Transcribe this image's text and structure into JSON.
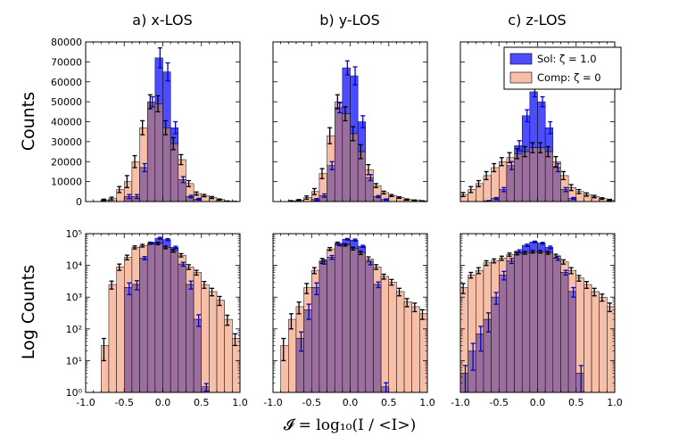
{
  "colors": {
    "sol": "#4d4dff",
    "comp": "#f7bfa8",
    "overlap": "#9b6f9d",
    "sol_err": "#0000cc",
    "comp_err": "#000000"
  },
  "row_labels": [
    "Counts",
    "Log Counts"
  ],
  "xlabel": "𝓘 = log₁₀(I / <I>)",
  "legend": {
    "sol": "Sol: ζ = 1.0",
    "comp": "Comp: ζ = 0",
    "placement": "top-right of c) z-LOS linear panel"
  },
  "chart_data": [
    {
      "type": "bar",
      "title": "a) x-LOS",
      "scale": "linear",
      "xlim": [
        -1.0,
        1.0
      ],
      "ylim": [
        0,
        80000
      ],
      "bin_width": 0.1,
      "x": [
        -0.75,
        -0.65,
        -0.55,
        -0.45,
        -0.35,
        -0.25,
        -0.15,
        -0.05,
        0.05,
        0.15,
        0.25,
        0.35,
        0.45,
        0.55,
        0.65,
        0.75,
        0.85,
        0.95
      ],
      "xticks": [
        "-1.0",
        "-0.5",
        "0.0",
        "0.5",
        "1.0"
      ],
      "yticks": [
        "0",
        "10000",
        "20000",
        "30000",
        "40000",
        "50000",
        "60000",
        "70000",
        "80000"
      ],
      "series": [
        {
          "name": "Sol: ζ = 1.0",
          "values": [
            0,
            0,
            0,
            2500,
            2500,
            17000,
            50000,
            72000,
            65000,
            37000,
            11000,
            2500,
            1200,
            0,
            0,
            0,
            0,
            0
          ],
          "err": [
            0,
            0,
            0,
            1000,
            1000,
            2000,
            2500,
            5000,
            4500,
            3000,
            1500,
            600,
            400,
            0,
            0,
            0,
            0,
            0
          ]
        },
        {
          "name": "Comp: ζ = 0",
          "values": [
            800,
            1500,
            6000,
            10000,
            20000,
            37000,
            50000,
            49000,
            37000,
            29000,
            21000,
            9000,
            4000,
            3000,
            2000,
            1000,
            200,
            50
          ],
          "err": [
            400,
            700,
            1500,
            3000,
            3000,
            3500,
            3500,
            4000,
            3500,
            3000,
            2500,
            1500,
            800,
            600,
            500,
            300,
            100,
            30
          ]
        }
      ]
    },
    {
      "type": "bar",
      "title": "b) y-LOS",
      "scale": "linear",
      "xlim": [
        -1.0,
        1.0
      ],
      "ylim": [
        0,
        80000
      ],
      "bin_width": 0.1,
      "x": [
        -0.75,
        -0.65,
        -0.55,
        -0.45,
        -0.35,
        -0.25,
        -0.15,
        -0.05,
        0.05,
        0.15,
        0.25,
        0.35,
        0.45,
        0.55,
        0.65,
        0.75,
        0.85,
        0.95
      ],
      "xticks": [
        "-1.0",
        "-0.5",
        "0.0",
        "0.5",
        "1.0"
      ],
      "yticks": [],
      "series": [
        {
          "name": "Sol: ζ = 1.0",
          "values": [
            0,
            0,
            0,
            1000,
            3000,
            18000,
            47000,
            67000,
            63000,
            40000,
            12000,
            2500,
            1000,
            0,
            0,
            0,
            0,
            0
          ],
          "err": [
            0,
            0,
            0,
            500,
            800,
            2000,
            2500,
            3500,
            4500,
            3000,
            1500,
            500,
            300,
            0,
            0,
            0,
            0,
            0
          ]
        },
        {
          "name": "Comp: ζ = 0",
          "values": [
            300,
            700,
            2000,
            5000,
            14000,
            33000,
            50000,
            44000,
            34000,
            25000,
            16000,
            8000,
            4500,
            3000,
            2000,
            1000,
            600,
            300
          ],
          "err": [
            150,
            300,
            800,
            1500,
            2500,
            4000,
            3500,
            3500,
            3500,
            3500,
            2500,
            1000,
            700,
            500,
            400,
            300,
            200,
            100
          ]
        }
      ]
    },
    {
      "type": "bar",
      "title": "c) z-LOS",
      "scale": "linear",
      "xlim": [
        -1.0,
        1.0
      ],
      "ylim": [
        0,
        80000
      ],
      "bin_width": 0.1,
      "x": [
        -0.95,
        -0.85,
        -0.75,
        -0.65,
        -0.55,
        -0.45,
        -0.35,
        -0.25,
        -0.15,
        -0.05,
        0.05,
        0.15,
        0.25,
        0.35,
        0.45,
        0.55,
        0.65,
        0.75,
        0.85,
        0.95
      ],
      "xticks": [
        "-1.0",
        "-0.5",
        "0.0",
        "0.5",
        "1.0"
      ],
      "yticks": [],
      "series": [
        {
          "name": "Sol: ζ = 1.0",
          "values": [
            0,
            0,
            0,
            300,
            1500,
            6000,
            18000,
            28000,
            43000,
            55000,
            50000,
            37000,
            17000,
            6000,
            1500,
            0,
            0,
            0,
            0,
            0
          ],
          "err": [
            0,
            0,
            0,
            200,
            500,
            1000,
            2000,
            2500,
            3000,
            2500,
            2500,
            3000,
            2000,
            1000,
            500,
            0,
            0,
            0,
            0,
            0
          ]
        },
        {
          "name": "Comp: ζ = 0",
          "values": [
            3500,
            6000,
            9000,
            13000,
            17000,
            20000,
            22000,
            24000,
            25000,
            27000,
            27000,
            25000,
            20000,
            13000,
            7000,
            5000,
            3500,
            2500,
            1500,
            800
          ],
          "err": [
            1000,
            1500,
            1500,
            2000,
            2000,
            2000,
            2500,
            2500,
            2500,
            2500,
            2500,
            2500,
            2500,
            2000,
            1500,
            1000,
            800,
            600,
            400,
            300
          ]
        }
      ]
    },
    {
      "type": "bar",
      "title": "",
      "scale": "log",
      "xlim": [
        -1.0,
        1.0
      ],
      "ylim": [
        1,
        100000
      ],
      "bin_width": 0.1,
      "x": [
        -0.75,
        -0.65,
        -0.55,
        -0.45,
        -0.35,
        -0.25,
        -0.15,
        -0.05,
        0.05,
        0.15,
        0.25,
        0.35,
        0.45,
        0.55,
        0.65,
        0.75,
        0.85,
        0.95
      ],
      "xticks": [
        "-1.0",
        "-0.5",
        "0.0",
        "0.5",
        "1.0"
      ],
      "yticks": [
        "10⁰",
        "10¹",
        "10²",
        "10³",
        "10⁴",
        "10⁵"
      ],
      "series": [
        {
          "name": "Sol: ζ = 1.0",
          "values": [
            0,
            0,
            0,
            2000,
            2500,
            17000,
            50000,
            72000,
            65000,
            37000,
            11000,
            2500,
            200,
            1.5,
            0,
            0,
            0,
            0
          ],
          "err": [
            0,
            0,
            0,
            800,
            800,
            2000,
            2500,
            5000,
            4500,
            3000,
            1500,
            700,
            80,
            0.4,
            0,
            0,
            0,
            0
          ]
        },
        {
          "name": "Comp: ζ = 0",
          "values": [
            30,
            2500,
            9000,
            18000,
            37000,
            42000,
            50000,
            49000,
            37000,
            29000,
            21000,
            9000,
            6000,
            2500,
            1500,
            800,
            200,
            50
          ],
          "err": [
            20,
            700,
            2000,
            3000,
            4000,
            4000,
            4000,
            4000,
            3500,
            3000,
            2500,
            1500,
            1000,
            600,
            400,
            250,
            70,
            20
          ]
        }
      ]
    },
    {
      "type": "bar",
      "title": "",
      "scale": "log",
      "xlim": [
        -1.0,
        1.0
      ],
      "ylim": [
        1,
        100000
      ],
      "bin_width": 0.1,
      "x": [
        -0.85,
        -0.75,
        -0.65,
        -0.55,
        -0.45,
        -0.35,
        -0.25,
        -0.15,
        -0.05,
        0.05,
        0.15,
        0.25,
        0.35,
        0.45,
        0.55,
        0.65,
        0.75,
        0.85,
        0.95
      ],
      "xticks": [
        "-1.0",
        "-0.5",
        "0.0",
        "0.5",
        "1.0"
      ],
      "yticks": [],
      "series": [
        {
          "name": "Sol: ζ = 1.0",
          "values": [
            0,
            0,
            50,
            400,
            2000,
            13000,
            18000,
            45000,
            67000,
            63000,
            40000,
            12000,
            2500,
            1.5,
            0,
            0,
            0,
            0,
            0
          ],
          "err": [
            0,
            0,
            30,
            200,
            800,
            2000,
            2500,
            3500,
            3500,
            4500,
            3000,
            1500,
            500,
            0.5,
            0,
            0,
            0,
            0,
            0
          ]
        },
        {
          "name": "Comp: ζ = 0",
          "values": [
            30,
            200,
            500,
            2000,
            7000,
            14000,
            33000,
            50000,
            44000,
            34000,
            25000,
            16000,
            9000,
            4500,
            3000,
            1500,
            700,
            500,
            300
          ],
          "err": [
            20,
            100,
            200,
            700,
            1500,
            2500,
            3500,
            4000,
            3500,
            3500,
            3000,
            2500,
            1500,
            800,
            600,
            400,
            200,
            150,
            100
          ]
        }
      ]
    },
    {
      "type": "bar",
      "title": "",
      "scale": "log",
      "xlim": [
        -1.0,
        1.0
      ],
      "ylim": [
        1,
        100000
      ],
      "bin_width": 0.1,
      "x": [
        -0.95,
        -0.85,
        -0.75,
        -0.65,
        -0.55,
        -0.45,
        -0.35,
        -0.25,
        -0.15,
        -0.05,
        0.05,
        0.15,
        0.25,
        0.35,
        0.45,
        0.55,
        0.65,
        0.75,
        0.85,
        0.95
      ],
      "xticks": [
        "-1.0",
        "-0.5",
        "0.0",
        "0.5",
        "1.0"
      ],
      "yticks": [],
      "series": [
        {
          "name": "Sol: ζ = 1.0",
          "values": [
            4,
            20,
            70,
            200,
            1000,
            5000,
            14000,
            28000,
            43000,
            55000,
            50000,
            37000,
            17000,
            6000,
            1500,
            4,
            0,
            0,
            0,
            0
          ],
          "err": [
            3,
            15,
            50,
            120,
            400,
            1500,
            2500,
            3000,
            3500,
            3000,
            3000,
            3500,
            2500,
            1000,
            500,
            3,
            0,
            0,
            0,
            0
          ]
        },
        {
          "name": "Comp: ζ = 0",
          "values": [
            2000,
            5000,
            7000,
            12000,
            14000,
            17000,
            22000,
            24000,
            25000,
            27000,
            27000,
            25000,
            20000,
            13000,
            7000,
            4000,
            2500,
            1500,
            1000,
            500
          ],
          "err": [
            700,
            1000,
            1500,
            2000,
            2000,
            2500,
            2500,
            2500,
            2500,
            2500,
            2500,
            2500,
            2500,
            2000,
            1500,
            800,
            600,
            400,
            250,
            150
          ]
        }
      ]
    }
  ]
}
